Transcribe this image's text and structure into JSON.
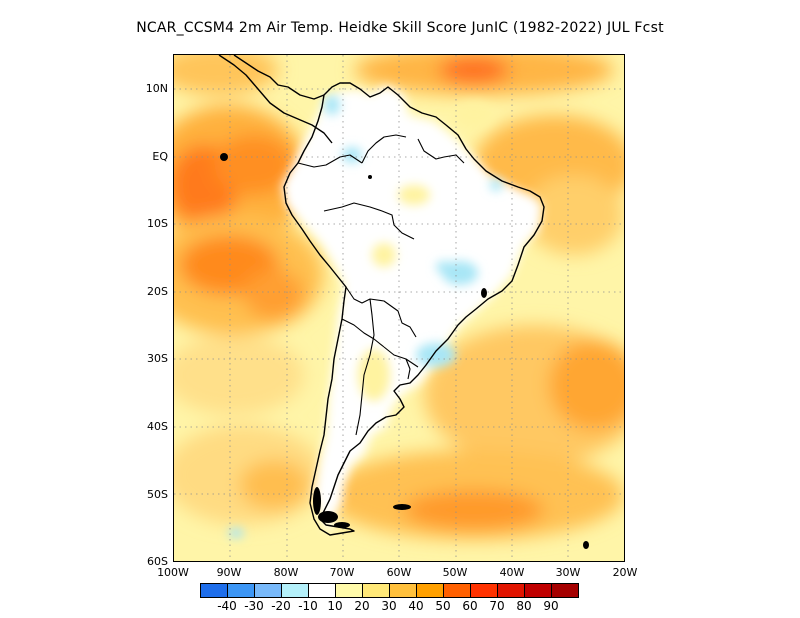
{
  "title": "NCAR_CCSM4  2m Air Temp. Heidke Skill Score JunIC (1982-2022) JUL Fcst",
  "axes": {
    "y_ticks": [
      "10N",
      "EQ",
      "10S",
      "20S",
      "30S",
      "40S",
      "50S",
      "60S"
    ],
    "x_ticks": [
      "100W",
      "90W",
      "80W",
      "70W",
      "60W",
      "50W",
      "40W",
      "30W",
      "20W"
    ]
  },
  "map": {
    "region": "South America",
    "lon_range": [
      -100,
      -20
    ],
    "lat_range": [
      -60,
      15
    ],
    "gridlines": "dotted"
  },
  "colorbar": {
    "labels": [
      "-40",
      "-30",
      "-20",
      "-10",
      "10",
      "20",
      "30",
      "40",
      "50",
      "60",
      "70",
      "80",
      "90"
    ],
    "colors": [
      "#1e6eeb",
      "#3c96f5",
      "#78b9fa",
      "#b4f0fa",
      "#ffffff",
      "#fffaaa",
      "#ffe878",
      "#ffc03c",
      "#ffa000",
      "#ff6000",
      "#ff3200",
      "#e11400",
      "#c00000",
      "#a50000"
    ]
  }
}
